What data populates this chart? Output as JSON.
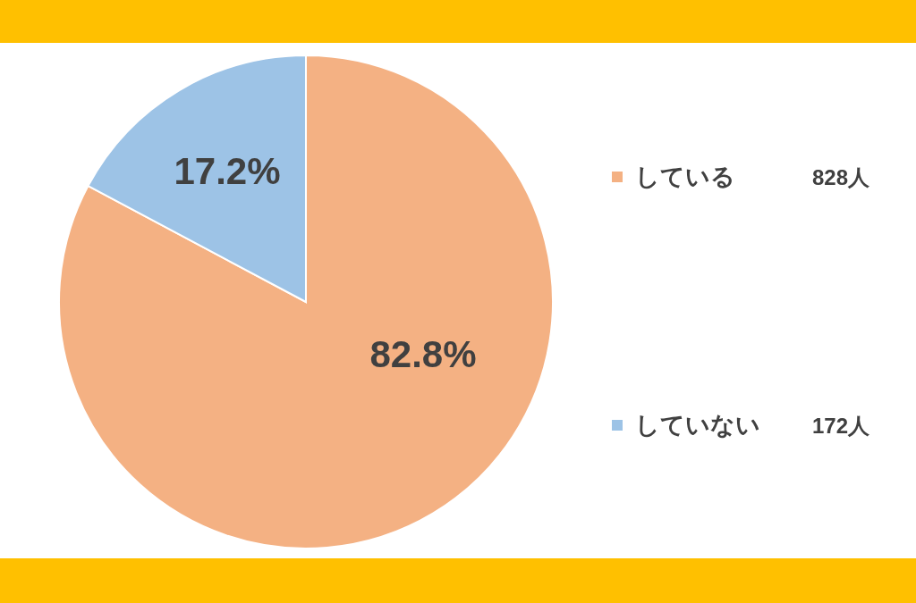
{
  "chart_data": {
    "type": "pie",
    "categories": [
      "している",
      "していない"
    ],
    "values": [
      82.8,
      17.2
    ],
    "colors": [
      "#f4b183",
      "#9dc3e6"
    ],
    "value_labels": [
      "82.8%",
      "17.2%"
    ],
    "annotations": [
      "828人",
      "172人"
    ],
    "legend": "right"
  }
}
